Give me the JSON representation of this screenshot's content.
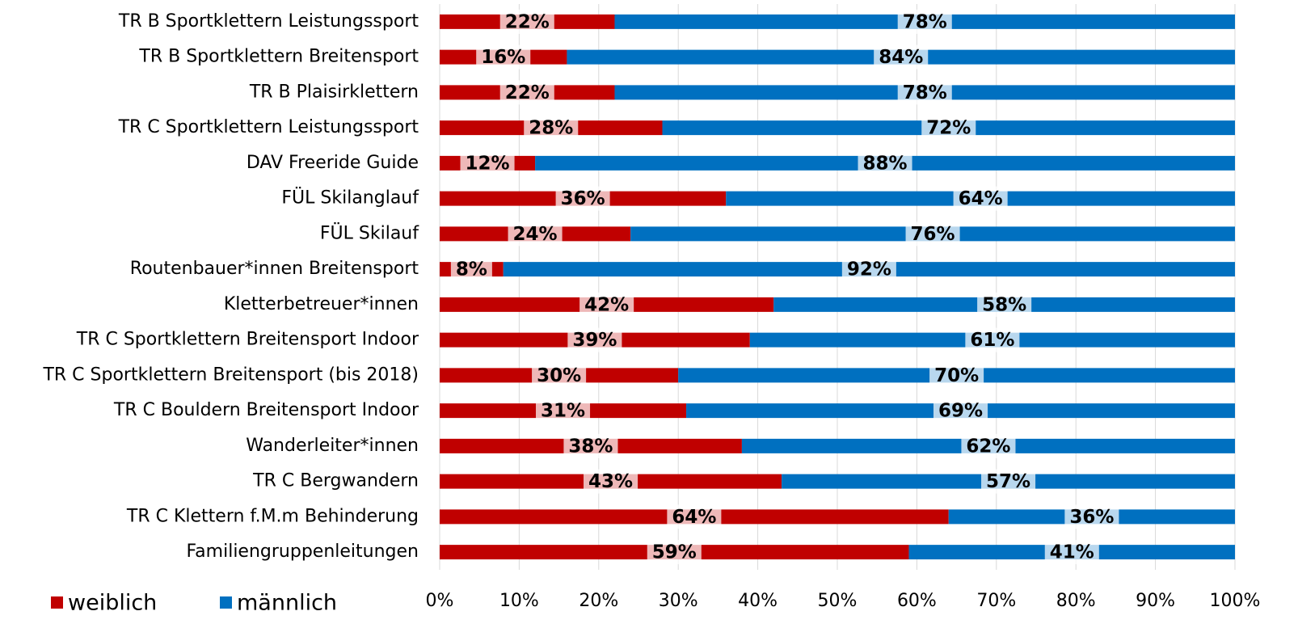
{
  "chart_data": {
    "type": "stacked_barh",
    "categories": [
      "TR B Sportklettern Leistungssport",
      "TR B Sportklettern Breitensport",
      "TR B Plaisirklettern",
      "TR C Sportklettern Leistungssport",
      "DAV Freeride Guide",
      "FÜL Skilanglauf",
      "FÜL Skilauf",
      "Routenbauer*innen Breitensport",
      "Kletterbetreuer*innen",
      "TR C Sportklettern Breitensport Indoor",
      "TR C Sportklettern Breitensport (bis 2018)",
      "TR C Bouldern Breitensport Indoor",
      "Wanderleiter*innen",
      "TR C Bergwandern",
      "TR C Klettern f.M.m Behinderung",
      "Familiengruppenleitungen"
    ],
    "series": [
      {
        "name": "weiblich",
        "color": "#c00000",
        "values": [
          22,
          16,
          22,
          28,
          12,
          36,
          24,
          8,
          42,
          39,
          30,
          31,
          38,
          43,
          64,
          59
        ],
        "value_labels": [
          "22%",
          "16%",
          "22%",
          "28%",
          "12%",
          "36%",
          "24%",
          "8%",
          "42%",
          "39%",
          "30%",
          "31%",
          "38%",
          "43%",
          "64%",
          "59%"
        ]
      },
      {
        "name": "männlich",
        "color": "#0070c0",
        "values": [
          78,
          84,
          78,
          72,
          88,
          64,
          76,
          92,
          58,
          61,
          70,
          69,
          62,
          57,
          36,
          41
        ],
        "value_labels": [
          "78%",
          "84%",
          "78%",
          "72%",
          "88%",
          "64%",
          "76%",
          "92%",
          "58%",
          "61%",
          "70%",
          "69%",
          "62%",
          "57%",
          "36%",
          "41%"
        ]
      }
    ],
    "xlim": [
      0,
      100
    ],
    "xticks": [
      {
        "value": 0,
        "label": "0%"
      },
      {
        "value": 10,
        "label": "10%"
      },
      {
        "value": 20,
        "label": "20%"
      },
      {
        "value": 30,
        "label": "30%"
      },
      {
        "value": 40,
        "label": "40%"
      },
      {
        "value": 50,
        "label": "50%"
      },
      {
        "value": 60,
        "label": "60%"
      },
      {
        "value": 70,
        "label": "70%"
      },
      {
        "value": 80,
        "label": "80%"
      },
      {
        "value": 90,
        "label": "90%"
      },
      {
        "value": 100,
        "label": "100%"
      }
    ],
    "grid": true,
    "legend": "bottom-left"
  }
}
